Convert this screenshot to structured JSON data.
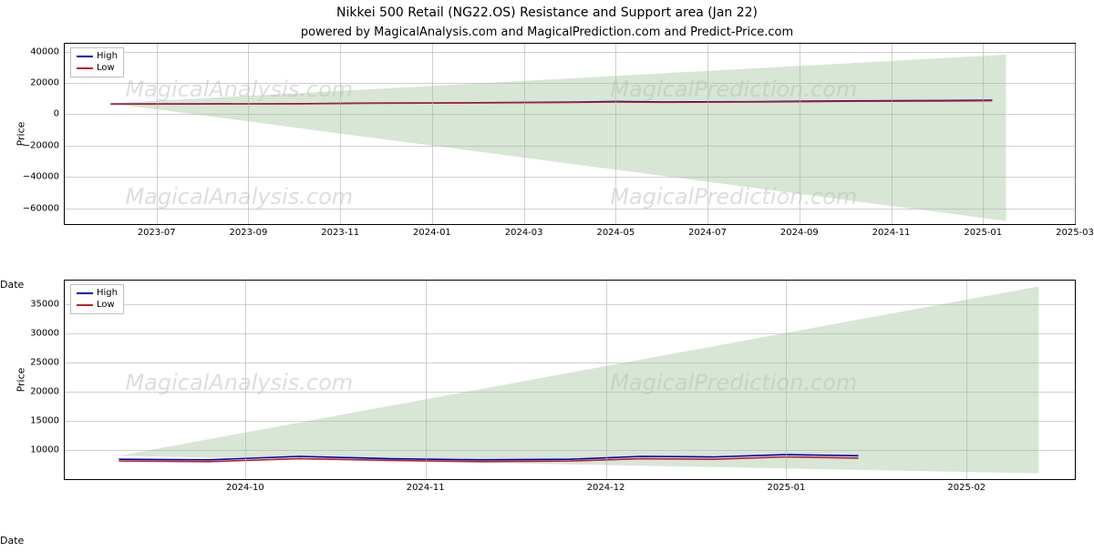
{
  "title": "Nikkei 500 Retail (NG22.OS) Resistance and Support area (Jan 22)",
  "subtitle": "powered by MagicalAnalysis.com and MagicalPrediction.com and Predict-Price.com",
  "title_fontsize": 14,
  "subtitle_fontsize": 13,
  "background_color": "#ffffff",
  "grid_color": "#b0b0b0",
  "legend": {
    "series": [
      {
        "label": "High",
        "color": "#0000bf"
      },
      {
        "label": "Low",
        "color": "#c02020"
      }
    ]
  },
  "watermarks": [
    "MagicalAnalysis.com",
    "MagicalPrediction.com",
    "MagicalAnalysis.com",
    "MagicalPrediction.com"
  ],
  "panel1": {
    "type": "line",
    "ylabel": "Price",
    "xlabel": "Date",
    "xlim": [
      0,
      22
    ],
    "ylim": [
      -70000,
      45000
    ],
    "yticks": [
      -60000,
      -40000,
      -20000,
      0,
      20000,
      40000
    ],
    "ytick_labels": [
      "−60000",
      "−40000",
      "−20000",
      "0",
      "20000",
      "40000"
    ],
    "xticks": [
      2,
      4,
      6,
      8,
      10,
      12,
      14,
      16,
      18,
      20,
      22
    ],
    "xtick_labels": [
      "2023-07",
      "2023-09",
      "2023-11",
      "2024-01",
      "2024-03",
      "2024-05",
      "2024-07",
      "2024-09",
      "2024-11",
      "2025-01",
      "2025-03"
    ],
    "wm_top_left": "MagicalAnalysis.com",
    "wm_top_right": "MagicalPrediction.com",
    "wm_bot_left": "MagicalAnalysis.com",
    "wm_bot_right": "MagicalPrediction.com",
    "area": {
      "color": "#d7e6d5",
      "poly": [
        [
          1,
          7000
        ],
        [
          20.5,
          38000
        ],
        [
          20.5,
          -68000
        ],
        [
          1,
          7000
        ]
      ]
    },
    "series": [
      {
        "name": "high",
        "color": "#0000bf",
        "width": 1.4,
        "points": [
          [
            1,
            6600
          ],
          [
            3,
            6700
          ],
          [
            5,
            6800
          ],
          [
            7,
            7200
          ],
          [
            9,
            7400
          ],
          [
            11,
            7800
          ],
          [
            12,
            8200
          ],
          [
            13,
            7900
          ],
          [
            15,
            8100
          ],
          [
            17,
            8600
          ],
          [
            19,
            8800
          ],
          [
            20.2,
            9000
          ]
        ]
      },
      {
        "name": "low",
        "color": "#c02020",
        "width": 1.4,
        "points": [
          [
            1,
            6400
          ],
          [
            3,
            6500
          ],
          [
            5,
            6600
          ],
          [
            7,
            7000
          ],
          [
            9,
            7200
          ],
          [
            11,
            7500
          ],
          [
            12,
            7800
          ],
          [
            13,
            7600
          ],
          [
            15,
            7800
          ],
          [
            17,
            8200
          ],
          [
            19,
            8400
          ],
          [
            20.2,
            8600
          ]
        ]
      }
    ]
  },
  "panel2": {
    "type": "line",
    "ylabel": "Price",
    "xlabel": "Date",
    "xlim": [
      0,
      5.6
    ],
    "ylim": [
      5000,
      39000
    ],
    "yticks": [
      10000,
      15000,
      20000,
      25000,
      30000,
      35000
    ],
    "ytick_labels": [
      "10000",
      "15000",
      "20000",
      "25000",
      "30000",
      "35000"
    ],
    "xticks": [
      1,
      2,
      3,
      4,
      5
    ],
    "xtick_labels": [
      "2024-10",
      "2024-11",
      "2024-12",
      "2025-01",
      "2025-02"
    ],
    "wm_left": "MagicalAnalysis.com",
    "wm_right": "MagicalPrediction.com",
    "area": {
      "color": "#d7e6d5",
      "poly": [
        [
          0.3,
          9000
        ],
        [
          5.4,
          38000
        ],
        [
          5.4,
          6000
        ],
        [
          0.3,
          9000
        ]
      ]
    },
    "series": [
      {
        "name": "high",
        "color": "#0000bf",
        "width": 1.6,
        "points": [
          [
            0.3,
            8400
          ],
          [
            0.8,
            8300
          ],
          [
            1.3,
            8900
          ],
          [
            1.8,
            8500
          ],
          [
            2.3,
            8300
          ],
          [
            2.8,
            8400
          ],
          [
            3.2,
            8900
          ],
          [
            3.6,
            8800
          ],
          [
            4.0,
            9200
          ],
          [
            4.4,
            9000
          ]
        ]
      },
      {
        "name": "low",
        "color": "#c02020",
        "width": 1.6,
        "points": [
          [
            0.3,
            8100
          ],
          [
            0.8,
            8000
          ],
          [
            1.3,
            8500
          ],
          [
            1.8,
            8200
          ],
          [
            2.3,
            8000
          ],
          [
            2.8,
            8100
          ],
          [
            3.2,
            8500
          ],
          [
            3.6,
            8400
          ],
          [
            4.0,
            8800
          ],
          [
            4.4,
            8600
          ]
        ]
      }
    ]
  }
}
